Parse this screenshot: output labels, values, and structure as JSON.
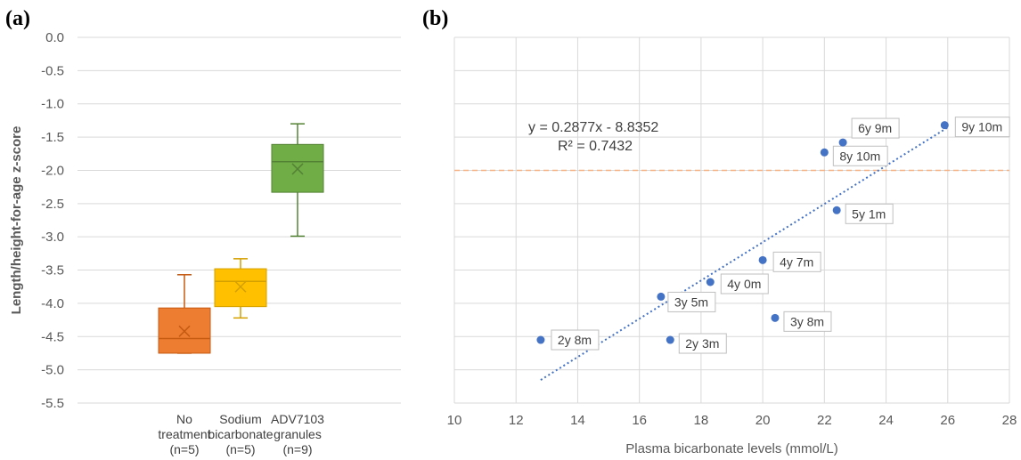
{
  "chart_data": [
    {
      "panel": "(a)",
      "type": "box",
      "ylabel": "Length/height-for-age z-score",
      "ylim": [
        -5.5,
        0.0
      ],
      "yticks": [
        "0.0",
        "-0.5",
        "-1.0",
        "-1.5",
        "-2.0",
        "-2.5",
        "-3.0",
        "-3.5",
        "-4.0",
        "-4.5",
        "-5.0",
        "-5.5"
      ],
      "grid": true,
      "boxes": [
        {
          "label_lines": [
            "No",
            "treatment",
            "(n=5)"
          ],
          "color": "#ED7D31",
          "edge": "#C55A11",
          "min": -4.75,
          "q1": -4.75,
          "median": -4.53,
          "q3": -4.07,
          "max": -3.57,
          "mean": -4.42
        },
        {
          "label_lines": [
            "Sodium",
            "bicarbonate",
            "(n=5)"
          ],
          "color": "#FFC000",
          "edge": "#D4A000",
          "min": -4.22,
          "q1": -4.05,
          "median": -3.67,
          "q3": -3.48,
          "max": -3.33,
          "mean": -3.75
        },
        {
          "label_lines": [
            "ADV7103",
            "granules",
            "(n=9)"
          ],
          "color": "#70AD47",
          "edge": "#548235",
          "min": -2.99,
          "q1": -2.33,
          "median": -1.87,
          "q3": -1.61,
          "max": -1.3,
          "mean": -1.98
        }
      ]
    },
    {
      "panel": "(b)",
      "type": "scatter",
      "xlabel": "Plasma bicarbonate levels (mmol/L)",
      "xlim": [
        10,
        28
      ],
      "xticks": [
        "10",
        "12",
        "14",
        "16",
        "18",
        "20",
        "22",
        "24",
        "26",
        "28"
      ],
      "ylim": [
        -5.5,
        0.0
      ],
      "grid": true,
      "point_color": "#4472C4",
      "points": [
        {
          "x": 12.8,
          "y": -4.55,
          "label": "2y 8m"
        },
        {
          "x": 17.0,
          "y": -4.55,
          "label": "2y 3m"
        },
        {
          "x": 16.7,
          "y": -3.9,
          "label": "3y 5m"
        },
        {
          "x": 18.3,
          "y": -3.68,
          "label": "4y 0m"
        },
        {
          "x": 20.0,
          "y": -3.35,
          "label": "4y 7m"
        },
        {
          "x": 20.4,
          "y": -4.22,
          "label": "3y 8m"
        },
        {
          "x": 22.4,
          "y": -2.6,
          "label": "5y 1m"
        },
        {
          "x": 22.0,
          "y": -1.73,
          "label": "8y 10m"
        },
        {
          "x": 22.6,
          "y": -1.58,
          "label": "6y 9m"
        },
        {
          "x": 25.9,
          "y": -1.32,
          "label": "9y 10m"
        }
      ],
      "trendline": {
        "slope": 0.2877,
        "intercept": -8.8352,
        "x_from": 12.8,
        "x_to": 26.0,
        "color": "#4472C4",
        "style": "dotted"
      },
      "equation": "y = 0.2877x - 8.8352",
      "r_squared": "R² = 0.7432",
      "reference_line": {
        "y": -2.0,
        "color": "#F4B183",
        "style": "dashed"
      }
    }
  ]
}
